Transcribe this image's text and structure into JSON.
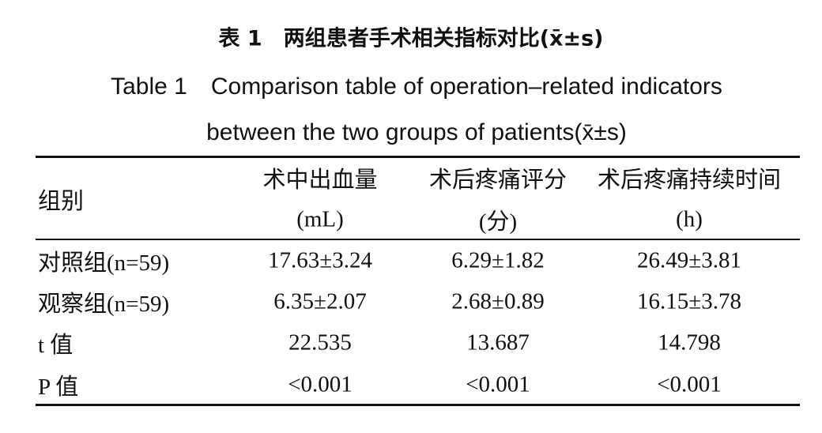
{
  "title": {
    "cn": "表 1　两组患者手术相关指标对比(x̄±s)",
    "en": [
      "Table 1　Comparison table of operation–related indicators",
      "between the two groups of patients(x̄±s)"
    ]
  },
  "table": {
    "header": [
      [
        "组别"
      ],
      [
        "术中出血量",
        "(mL)"
      ],
      [
        "术后疼痛评分",
        "(分)"
      ],
      [
        "术后疼痛持续时间",
        "(h)"
      ]
    ],
    "rows": [
      [
        "对照组(n=59)",
        "17.63±3.24",
        "6.29±1.82",
        "26.49±3.81"
      ],
      [
        "观察组(n=59)",
        "6.35±2.07",
        "2.68±0.89",
        "16.15±3.78"
      ],
      [
        "t 值",
        "22.535",
        "13.687",
        "14.798"
      ],
      [
        "P 值",
        "<0.001",
        "<0.001",
        "<0.001"
      ]
    ]
  }
}
